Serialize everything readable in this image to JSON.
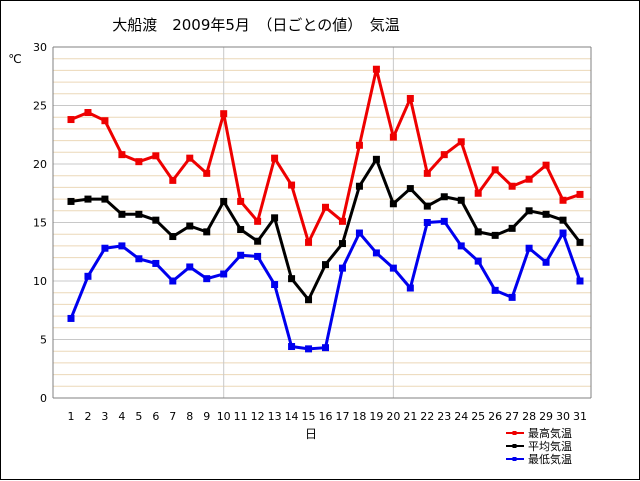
{
  "chart_data": {
    "type": "line",
    "title": "大船渡　2009年5月　（日ごとの値）　気温",
    "ylabel": "℃",
    "xlabel": "日",
    "ylim": [
      0,
      30
    ],
    "yticks": [
      0,
      5,
      10,
      15,
      20,
      25,
      30
    ],
    "grid": true,
    "legend_position": "bottom-right",
    "categories": [
      "1",
      "2",
      "3",
      "4",
      "5",
      "6",
      "7",
      "8",
      "9",
      "10",
      "11",
      "12",
      "13",
      "14",
      "15",
      "16",
      "17",
      "18",
      "19",
      "20",
      "21",
      "22",
      "23",
      "24",
      "25",
      "26",
      "27",
      "28",
      "29",
      "30",
      "31"
    ],
    "series": [
      {
        "name": "最高気温",
        "color": "#ee0000",
        "values": [
          23.8,
          24.4,
          23.7,
          20.8,
          20.2,
          20.7,
          18.6,
          20.5,
          19.2,
          24.3,
          16.8,
          15.1,
          20.5,
          18.2,
          13.3,
          16.3,
          15.1,
          21.6,
          28.1,
          22.3,
          25.6,
          19.2,
          20.8,
          21.9,
          17.5,
          19.5,
          18.1,
          18.7,
          19.9,
          16.9,
          17.4
        ]
      },
      {
        "name": "平均気温",
        "color": "#000000",
        "values": [
          16.8,
          17.0,
          17.0,
          15.7,
          15.7,
          15.2,
          13.8,
          14.7,
          14.2,
          16.8,
          14.4,
          13.4,
          15.4,
          10.2,
          8.4,
          11.4,
          13.2,
          18.1,
          20.4,
          16.6,
          17.9,
          16.4,
          17.2,
          16.9,
          14.2,
          13.9,
          14.5,
          16.0,
          15.7,
          15.2,
          13.3
        ]
      },
      {
        "name": "最低気温",
        "color": "#0000ee",
        "values": [
          6.8,
          10.4,
          12.8,
          13.0,
          11.9,
          11.5,
          10.0,
          11.2,
          10.2,
          10.6,
          12.2,
          12.1,
          9.7,
          4.4,
          4.2,
          4.3,
          11.1,
          14.1,
          12.4,
          11.1,
          9.4,
          15.0,
          15.1,
          13.0,
          11.7,
          9.2,
          8.6,
          12.8,
          11.6,
          14.1,
          10.0
        ]
      }
    ]
  }
}
